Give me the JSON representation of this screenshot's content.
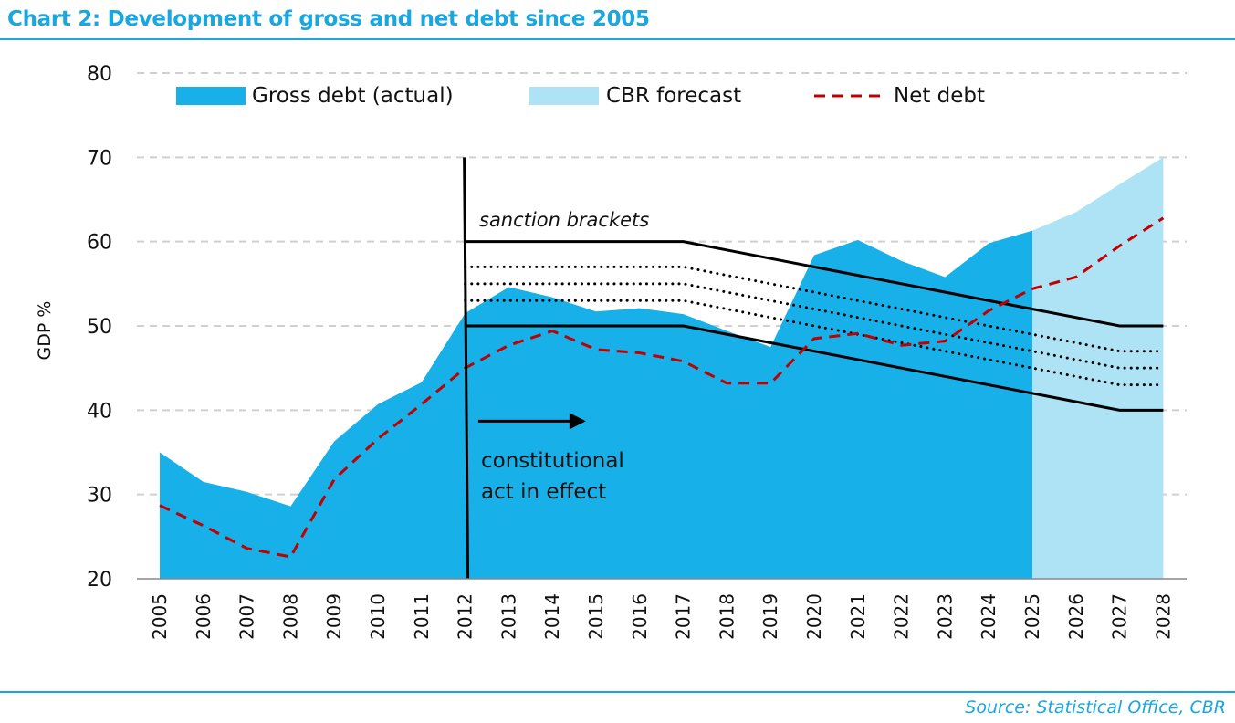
{
  "header": {
    "title": "Chart 2: Development of gross and net debt since 2005",
    "source": "Source: Statistical Office, CBR"
  },
  "colors": {
    "gross": "#17b0e8",
    "forecast": "#ade3f5",
    "net": "#c00000",
    "accent": "#1aa7df",
    "grid": "#d0d0d0"
  },
  "chart_data": {
    "type": "area",
    "title": "Chart 2: Development of gross and net debt since 2005",
    "ylabel": "GDP %",
    "xlabel": "",
    "ylim": [
      20,
      80
    ],
    "yticks": [
      20,
      30,
      40,
      50,
      60,
      70,
      80
    ],
    "grid": true,
    "legend_position": "top",
    "categories": [
      "2005",
      "2006",
      "2007",
      "2008",
      "2009",
      "2010",
      "2011",
      "2012",
      "2013",
      "2014",
      "2015",
      "2016",
      "2017",
      "2018",
      "2019",
      "2020",
      "2021",
      "2022",
      "2023",
      "2024",
      "2025",
      "2026",
      "2027",
      "2028"
    ],
    "series": [
      {
        "name": "Gross debt (actual)",
        "kind": "area",
        "x": [
          2005,
          2006,
          2007,
          2008,
          2009,
          2010,
          2011,
          2012,
          2013,
          2014,
          2015,
          2016,
          2017,
          2018,
          2019,
          2020,
          2021,
          2022,
          2023,
          2024,
          2025
        ],
        "values": [
          35,
          31.5,
          30.3,
          28.6,
          36.3,
          40.7,
          43.3,
          51.5,
          54.6,
          53.4,
          51.7,
          52.1,
          51.4,
          49.4,
          47.5,
          58.4,
          60.2,
          57.7,
          55.8,
          59.8,
          61.3
        ]
      },
      {
        "name": "CBR forecast",
        "kind": "area",
        "x": [
          2025,
          2026,
          2027,
          2028
        ],
        "values": [
          61.3,
          63.5,
          66.8,
          70
        ]
      },
      {
        "name": "Net debt",
        "kind": "dashed-line",
        "x": [
          2005,
          2006,
          2007,
          2008,
          2009,
          2010,
          2011,
          2012,
          2013,
          2014,
          2015,
          2016,
          2017,
          2018,
          2019,
          2020,
          2021,
          2022,
          2023,
          2024,
          2025,
          2026,
          2027,
          2028
        ],
        "values": [
          28.7,
          26.3,
          23.6,
          22.6,
          31.8,
          36.6,
          40.7,
          45,
          47.7,
          49.4,
          47.2,
          46.8,
          45.8,
          43.2,
          43.2,
          48.5,
          49.1,
          47.7,
          48.2,
          51.8,
          54.4,
          55.8,
          59.5,
          62.8
        ]
      }
    ],
    "brackets": {
      "label": "sanction brackets",
      "upper": {
        "x": [
          2012,
          2017,
          2027,
          2028
        ],
        "values": [
          60,
          60,
          50,
          50
        ]
      },
      "lower": {
        "x": [
          2012,
          2017,
          2027,
          2028
        ],
        "values": [
          50,
          50,
          40,
          40
        ]
      },
      "dotted": [
        {
          "x": [
            2012,
            2017,
            2027,
            2028
          ],
          "values": [
            57,
            57,
            47,
            47
          ]
        },
        {
          "x": [
            2012,
            2017,
            2027,
            2028
          ],
          "values": [
            55,
            55,
            45,
            45
          ]
        },
        {
          "x": [
            2012,
            2017,
            2027,
            2028
          ],
          "values": [
            53,
            53,
            43,
            43
          ]
        }
      ]
    },
    "vline": {
      "x": 2012
    },
    "annotations": {
      "arrow_text_line1": "constitutional",
      "arrow_text_line2": "act in effect",
      "arrow_from_x": 2012.3,
      "arrow_to_x": 2014.6,
      "arrow_y": 38.7
    }
  }
}
